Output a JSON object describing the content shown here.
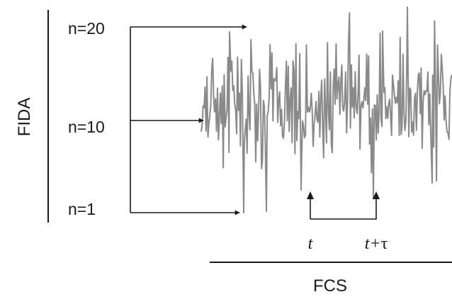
{
  "diagram": {
    "fida_label": "FIDA",
    "fcs_label": "FCS",
    "levels": [
      "n=20",
      "n=10",
      "n=1"
    ],
    "time_label": "t",
    "lag_label_prefix": "t+",
    "lag_label_symbol": "τ"
  },
  "colors": {
    "trace": "#8a8a8a",
    "ink": "#1a1a1a"
  }
}
